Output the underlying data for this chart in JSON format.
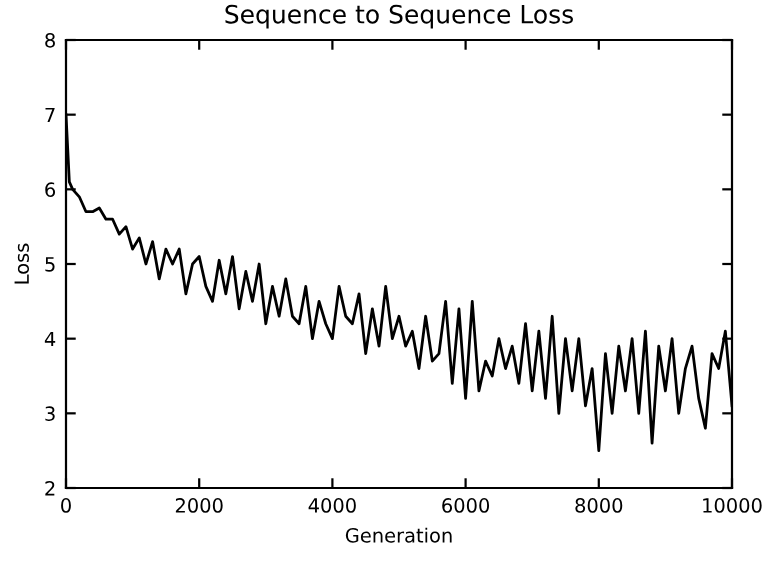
{
  "chart_data": {
    "type": "line",
    "title": "Sequence to Sequence Loss",
    "xlabel": "Generation",
    "ylabel": "Loss",
    "x": [
      0,
      50,
      100,
      200,
      300,
      400,
      500,
      600,
      700,
      800,
      900,
      1000,
      1100,
      1200,
      1300,
      1400,
      1500,
      1600,
      1700,
      1800,
      1900,
      2000,
      2100,
      2200,
      2300,
      2400,
      2500,
      2600,
      2700,
      2800,
      2900,
      3000,
      3100,
      3200,
      3300,
      3400,
      3500,
      3600,
      3700,
      3800,
      3900,
      4000,
      4100,
      4200,
      4300,
      4400,
      4500,
      4600,
      4700,
      4800,
      4900,
      5000,
      5100,
      5200,
      5300,
      5400,
      5500,
      5600,
      5700,
      5800,
      5900,
      6000,
      6100,
      6200,
      6300,
      6400,
      6500,
      6600,
      6700,
      6800,
      6900,
      7000,
      7100,
      7200,
      7300,
      7400,
      7500,
      7600,
      7700,
      7800,
      7900,
      8000,
      8100,
      8200,
      8300,
      8400,
      8500,
      8600,
      8700,
      8800,
      8900,
      9000,
      9100,
      9200,
      9300,
      9400,
      9500,
      9600,
      9700,
      9800,
      9900,
      10000
    ],
    "series": [
      {
        "color": "#000000",
        "values": [
          7.0,
          6.1,
          6.0,
          5.9,
          5.7,
          5.7,
          5.75,
          5.6,
          5.6,
          5.4,
          5.5,
          5.2,
          5.35,
          5.0,
          5.3,
          4.8,
          5.2,
          5.0,
          5.2,
          4.6,
          5.0,
          5.1,
          4.7,
          4.5,
          5.05,
          4.6,
          5.1,
          4.4,
          4.9,
          4.5,
          5.0,
          4.2,
          4.7,
          4.3,
          4.8,
          4.3,
          4.2,
          4.7,
          4.0,
          4.5,
          4.2,
          4.0,
          4.7,
          4.3,
          4.2,
          4.6,
          3.8,
          4.4,
          3.9,
          4.7,
          4.0,
          4.3,
          3.9,
          4.1,
          3.6,
          4.3,
          3.7,
          3.8,
          4.5,
          3.4,
          4.4,
          3.2,
          4.5,
          3.3,
          3.7,
          3.5,
          4.0,
          3.6,
          3.9,
          3.4,
          4.2,
          3.3,
          4.1,
          3.2,
          4.3,
          3.0,
          4.0,
          3.3,
          4.0,
          3.1,
          3.6,
          2.5,
          3.8,
          3.0,
          3.9,
          3.3,
          4.0,
          3.0,
          4.1,
          2.6,
          3.9,
          3.3,
          4.0,
          3.0,
          3.6,
          3.9,
          3.2,
          2.8,
          3.8,
          3.6,
          4.1,
          3.1
        ]
      }
    ],
    "xlim": [
      0,
      10000
    ],
    "ylim": [
      2,
      8
    ],
    "xticks": [
      0,
      2000,
      4000,
      6000,
      8000,
      10000
    ],
    "yticks": [
      2,
      3,
      4,
      5,
      6,
      7,
      8
    ],
    "grid": false,
    "legend": false
  }
}
